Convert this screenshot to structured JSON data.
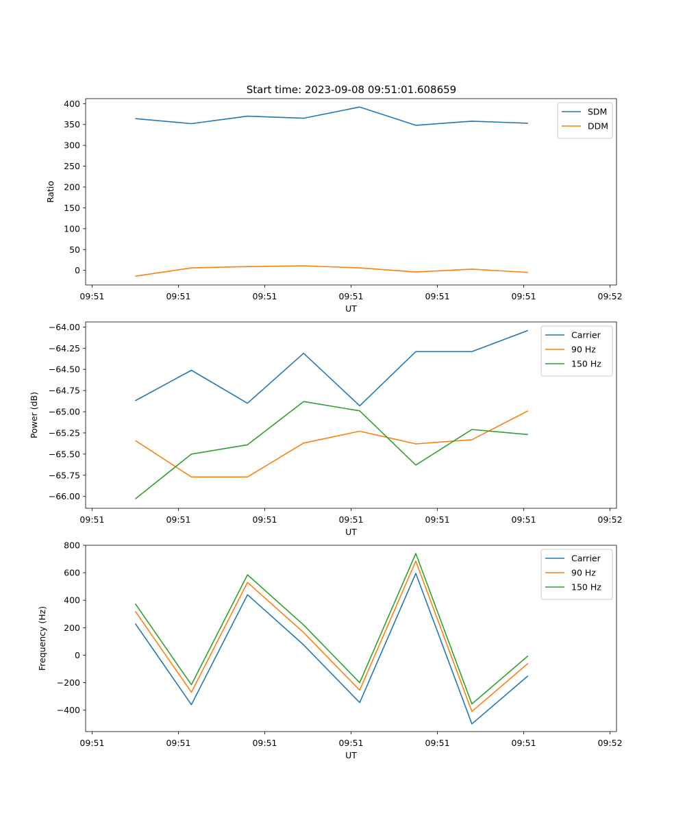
{
  "figure_title": "Start time: 2023-09-08 09:51:01.608659",
  "chart_data": [
    {
      "type": "line",
      "title": "Start time: 2023-09-08 09:51:01.608659",
      "xlabel": "UT",
      "ylabel": "Ratio",
      "x_tick_labels": [
        "09:51",
        "09:51",
        "09:51",
        "09:51",
        "09:51",
        "09:51",
        "09:52"
      ],
      "xlim": [
        -0.075,
        6.075
      ],
      "x": [
        0.5,
        1.15,
        1.8,
        2.45,
        3.1,
        3.75,
        4.4,
        5.05
      ],
      "ylim": [
        -35,
        412
      ],
      "y_ticks": [
        0,
        50,
        100,
        150,
        200,
        250,
        300,
        350,
        400
      ],
      "y_tick_labels": [
        "0",
        "50",
        "100",
        "150",
        "200",
        "250",
        "300",
        "350",
        "400"
      ],
      "legend_position": "top-right",
      "series": [
        {
          "name": "SDM",
          "color": "#1f77b4",
          "values": [
            364,
            352,
            370,
            365,
            392,
            348,
            358,
            353
          ]
        },
        {
          "name": "DDM",
          "color": "#ff7f0e",
          "values": [
            -14,
            6,
            9,
            11,
            6,
            -4,
            3,
            -5
          ]
        }
      ]
    },
    {
      "type": "line",
      "title": "",
      "xlabel": "UT",
      "ylabel": "Power (dB)",
      "x_tick_labels": [
        "09:51",
        "09:51",
        "09:51",
        "09:51",
        "09:51",
        "09:51",
        "09:52"
      ],
      "xlim": [
        -0.075,
        6.075
      ],
      "x": [
        0.5,
        1.15,
        1.8,
        2.45,
        3.1,
        3.75,
        4.4,
        5.05
      ],
      "ylim": [
        -66.14,
        -63.94
      ],
      "y_ticks": [
        -66.0,
        -65.75,
        -65.5,
        -65.25,
        -65.0,
        -64.75,
        -64.5,
        -64.25,
        -64.0
      ],
      "y_tick_labels": [
        "−66.00",
        "−65.75",
        "−65.50",
        "−65.25",
        "−65.00",
        "−64.75",
        "−64.50",
        "−64.25",
        "−64.00"
      ],
      "legend_position": "top-right",
      "series": [
        {
          "name": "Carrier",
          "color": "#1f77b4",
          "values": [
            -64.87,
            -64.51,
            -64.9,
            -64.31,
            -64.93,
            -64.29,
            -64.29,
            -64.04
          ]
        },
        {
          "name": "90 Hz",
          "color": "#ff7f0e",
          "values": [
            -65.34,
            -65.77,
            -65.77,
            -65.37,
            -65.23,
            -65.38,
            -65.33,
            -64.99
          ]
        },
        {
          "name": "150 Hz",
          "color": "#2ca02c",
          "values": [
            -66.03,
            -65.5,
            -65.39,
            -64.88,
            -64.99,
            -65.63,
            -65.21,
            -65.27
          ]
        }
      ]
    },
    {
      "type": "line",
      "title": "",
      "xlabel": "UT",
      "ylabel": "Frequency (Hz)",
      "x_tick_labels": [
        "09:51",
        "09:51",
        "09:51",
        "09:51",
        "09:51",
        "09:51",
        "09:52"
      ],
      "xlim": [
        -0.075,
        6.075
      ],
      "x": [
        0.5,
        1.15,
        1.8,
        2.45,
        3.1,
        3.75,
        4.4,
        5.05
      ],
      "ylim": [
        -556,
        800
      ],
      "y_ticks": [
        -400,
        -200,
        0,
        200,
        400,
        600,
        800
      ],
      "y_tick_labels": [
        "−400",
        "−200",
        "0",
        "200",
        "400",
        "600",
        "800"
      ],
      "legend_position": "top-right",
      "series": [
        {
          "name": "Carrier",
          "color": "#1f77b4",
          "values": [
            230,
            -360,
            440,
            75,
            -345,
            595,
            -500,
            -150
          ]
        },
        {
          "name": "90 Hz",
          "color": "#ff7f0e",
          "values": [
            320,
            -270,
            530,
            165,
            -255,
            685,
            -410,
            -60
          ]
        },
        {
          "name": "150 Hz",
          "color": "#2ca02c",
          "values": [
            375,
            -215,
            585,
            220,
            -200,
            740,
            -355,
            -5
          ]
        }
      ]
    }
  ]
}
